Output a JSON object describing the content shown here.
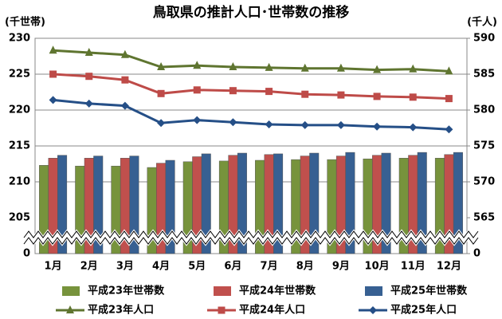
{
  "chart_data": {
    "type": "combo",
    "title": "鳥取県の推計人口･世帯数の推移",
    "y_label": "(千世帯)",
    "y2_label": "(千人)",
    "categories": [
      "1月",
      "2月",
      "3月",
      "4月",
      "5月",
      "6月",
      "7月",
      "8月",
      "9月",
      "10月",
      "11月",
      "12月"
    ],
    "ylim": [
      0,
      230
    ],
    "yticks": [
      0,
      205,
      210,
      215,
      220,
      225,
      230
    ],
    "y2lim": [
      0,
      590
    ],
    "y2ticks": [
      0,
      565,
      570,
      575,
      580,
      585,
      590
    ],
    "axis_break": true,
    "grid": true,
    "series": [
      {
        "name": "平成23年世帯数",
        "type": "bar",
        "color": "#77933c",
        "values": [
          212.3,
          212.2,
          212.2,
          212.0,
          212.8,
          212.9,
          213.0,
          213.1,
          213.1,
          213.2,
          213.3,
          213.3
        ]
      },
      {
        "name": "平成24年世帯数",
        "type": "bar",
        "color": "#c0504d",
        "values": [
          213.3,
          213.3,
          213.3,
          212.6,
          213.5,
          213.7,
          213.8,
          213.6,
          213.6,
          213.7,
          213.7,
          213.8
        ]
      },
      {
        "name": "平成25年世帯数",
        "type": "bar",
        "color": "#376092",
        "values": [
          213.7,
          213.6,
          213.6,
          213.0,
          213.9,
          214.0,
          213.9,
          214.0,
          214.1,
          214.0,
          214.1,
          214.1
        ]
      },
      {
        "name": "平成23年人口",
        "type": "line",
        "axis": "y2",
        "marker": "triangle",
        "color": "#5f7530",
        "values": [
          588.3,
          588.0,
          587.7,
          586.0,
          586.2,
          586.0,
          585.9,
          585.8,
          585.8,
          585.6,
          585.7,
          585.4
        ]
      },
      {
        "name": "平成24年人口",
        "type": "line",
        "axis": "y2",
        "marker": "square",
        "color": "#be4b48",
        "values": [
          585.0,
          584.7,
          584.2,
          582.3,
          582.8,
          582.7,
          582.6,
          582.2,
          582.1,
          581.9,
          581.8,
          581.6
        ]
      },
      {
        "name": "平成25年人口",
        "type": "line",
        "axis": "y2",
        "marker": "diamond",
        "color": "#254f87",
        "values": [
          581.4,
          580.9,
          580.6,
          578.2,
          578.6,
          578.3,
          578.0,
          577.9,
          577.9,
          577.7,
          577.6,
          577.3
        ]
      }
    ]
  }
}
